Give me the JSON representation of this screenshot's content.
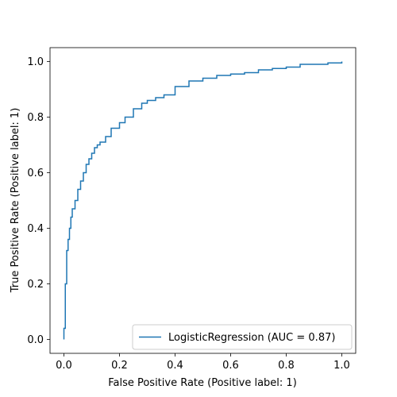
{
  "chart_data": {
    "type": "line",
    "title": "",
    "xlabel": "False Positive Rate (Positive label: 1)",
    "ylabel": "True Positive Rate (Positive label: 1)",
    "xlim": [
      -0.05,
      1.05
    ],
    "ylim": [
      -0.05,
      1.05
    ],
    "xticks": [
      0.0,
      0.2,
      0.4,
      0.6,
      0.8,
      1.0
    ],
    "xtick_labels": [
      "0.0",
      "0.2",
      "0.4",
      "0.6",
      "0.8",
      "1.0"
    ],
    "yticks": [
      0.0,
      0.2,
      0.4,
      0.6,
      0.8,
      1.0
    ],
    "ytick_labels": [
      "0.0",
      "0.2",
      "0.4",
      "0.6",
      "0.8",
      "1.0"
    ],
    "grid": false,
    "legend": {
      "position": "bottom-right",
      "entries": [
        "LogisticRegression (AUC = 0.87)"
      ]
    },
    "series": [
      {
        "name": "LogisticRegression (AUC = 0.87)",
        "color": "#1f77b4",
        "step": true,
        "x": [
          0.0,
          0.0,
          0.005,
          0.005,
          0.01,
          0.01,
          0.015,
          0.02,
          0.025,
          0.03,
          0.04,
          0.05,
          0.06,
          0.07,
          0.08,
          0.09,
          0.1,
          0.11,
          0.12,
          0.13,
          0.15,
          0.17,
          0.2,
          0.22,
          0.25,
          0.28,
          0.3,
          0.33,
          0.36,
          0.4,
          0.45,
          0.5,
          0.55,
          0.6,
          0.65,
          0.7,
          0.75,
          0.8,
          0.85,
          0.9,
          0.95,
          1.0
        ],
        "y": [
          0.0,
          0.04,
          0.1,
          0.2,
          0.25,
          0.32,
          0.36,
          0.4,
          0.44,
          0.47,
          0.5,
          0.54,
          0.57,
          0.6,
          0.63,
          0.65,
          0.67,
          0.69,
          0.7,
          0.71,
          0.73,
          0.76,
          0.78,
          0.8,
          0.83,
          0.85,
          0.86,
          0.87,
          0.88,
          0.91,
          0.93,
          0.94,
          0.95,
          0.955,
          0.96,
          0.97,
          0.975,
          0.98,
          0.99,
          0.99,
          0.995,
          1.0
        ]
      }
    ]
  }
}
